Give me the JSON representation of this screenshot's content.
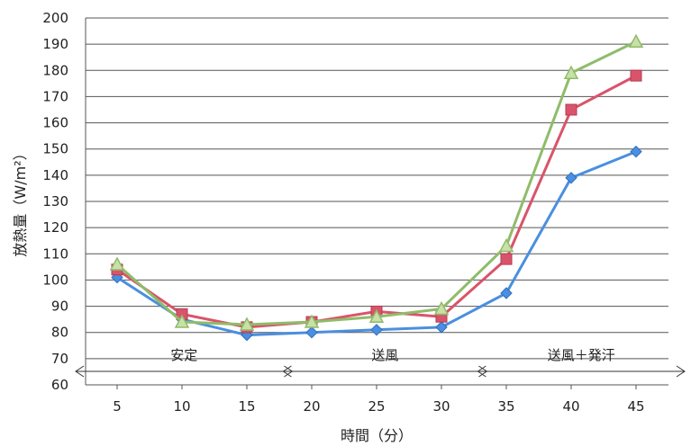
{
  "chart_data": {
    "type": "line",
    "x": [
      5,
      10,
      15,
      20,
      25,
      30,
      35,
      40,
      45
    ],
    "series": [
      {
        "color": "#4a8fe0",
        "marker": "diamond",
        "values": [
          101,
          85,
          79,
          80,
          81,
          82,
          95,
          139,
          149
        ]
      },
      {
        "color": "#d9546a",
        "marker": "square",
        "values": [
          104,
          87,
          82,
          84,
          88,
          86,
          108,
          165,
          178
        ]
      },
      {
        "color": "#8fbc6a",
        "marker": "triangle",
        "values": [
          106,
          84,
          83,
          84,
          86,
          89,
          113,
          179,
          191
        ]
      }
    ],
    "xlabel": "時間（分）",
    "ylabel": "放熱量（W/m²）",
    "ylim": [
      60,
      200
    ],
    "yticks": [
      60,
      70,
      80,
      90,
      100,
      110,
      120,
      130,
      140,
      150,
      160,
      170,
      180,
      190,
      200
    ],
    "grid": "horizontal",
    "phases": [
      {
        "label": "安定",
        "x_from": 2.5,
        "x_to": 18.5
      },
      {
        "label": "送風",
        "x_from": 18.5,
        "x_to": 33.5
      },
      {
        "label": "送風＋発汗",
        "x_from": 33.5,
        "x_to": 47.5
      }
    ]
  }
}
